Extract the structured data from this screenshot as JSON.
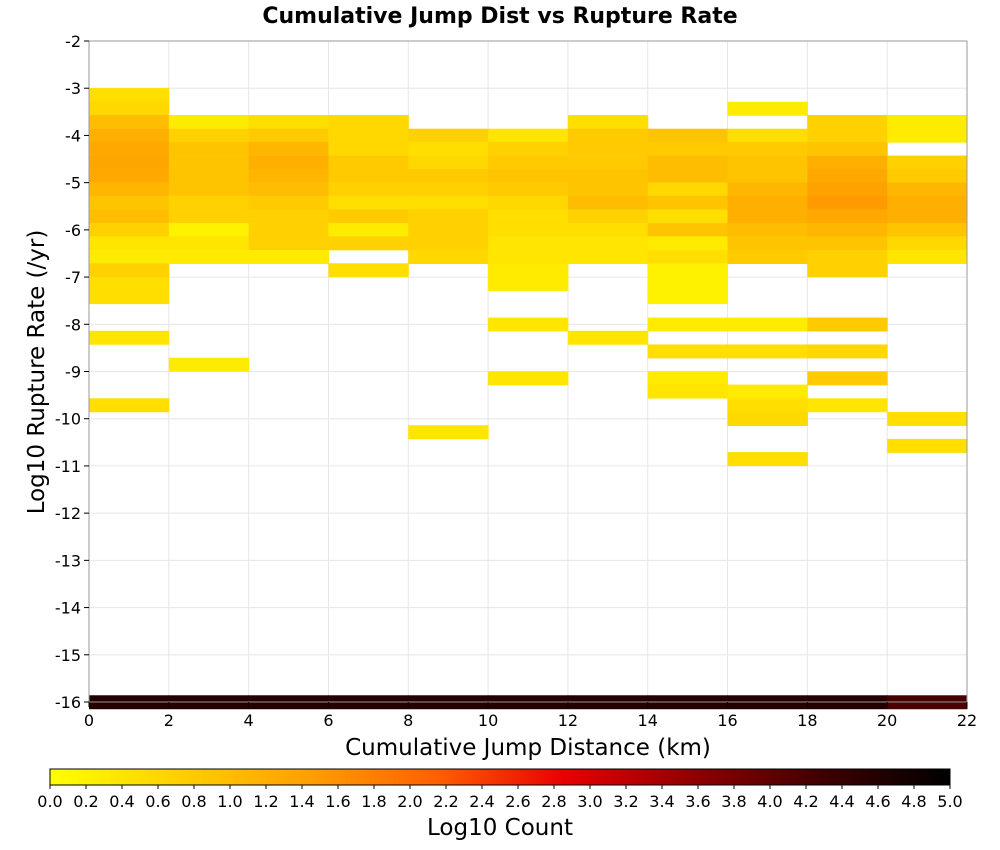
{
  "chart_data": {
    "type": "heatmap",
    "title": "Cumulative Jump Dist vs Rupture Rate",
    "xlabel": "Cumulative Jump Distance (km)",
    "ylabel": "Log10 Rupture Rate (/yr)",
    "xlim": [
      0,
      22
    ],
    "ylim": [
      -16,
      -2
    ],
    "x_ticks": [
      "0",
      "2",
      "4",
      "6",
      "8",
      "10",
      "12",
      "14",
      "16",
      "18",
      "20",
      "22"
    ],
    "y_ticks": [
      "-16",
      "-15",
      "-14",
      "-13",
      "-12",
      "-11",
      "-10",
      "-9",
      "-8",
      "-7",
      "-6",
      "-5",
      "-4",
      "-3",
      "-2"
    ],
    "x_bin_width": 2,
    "y_bin_height": 0.285,
    "grid": true,
    "colorbar": {
      "label": "Log10 Count",
      "range": [
        0,
        5
      ],
      "ticks": [
        "0.0",
        "0.2",
        "0.4",
        "0.6",
        "0.8",
        "1.0",
        "1.2",
        "1.4",
        "1.6",
        "1.8",
        "2.0",
        "2.2",
        "2.4",
        "2.6",
        "2.8",
        "3.0",
        "3.2",
        "3.4",
        "3.6",
        "3.8",
        "4.0",
        "4.2",
        "4.4",
        "4.6",
        "4.8",
        "5.0"
      ],
      "colors": [
        "#ffff00",
        "#ffd000",
        "#ffa000",
        "#ff6000",
        "#e80000",
        "#900000",
        "#400000",
        "#000000"
      ]
    },
    "cells": [
      [
        0,
        -3.14,
        0.5
      ],
      [
        0,
        -3.43,
        0.6
      ],
      [
        0,
        -3.71,
        1.0
      ],
      [
        0,
        -4.0,
        1.2
      ],
      [
        0,
        -4.28,
        1.3
      ],
      [
        0,
        -4.57,
        1.35
      ],
      [
        0,
        -4.85,
        1.3
      ],
      [
        0,
        -5.14,
        1.1
      ],
      [
        0,
        -5.42,
        0.9
      ],
      [
        0,
        -5.71,
        1.0
      ],
      [
        0,
        -6.0,
        0.7
      ],
      [
        0,
        -6.28,
        0.4
      ],
      [
        0,
        -6.57,
        0.3
      ],
      [
        0,
        -6.85,
        0.7
      ],
      [
        0,
        -7.14,
        0.5
      ],
      [
        0,
        -7.42,
        0.5
      ],
      [
        0,
        -8.28,
        0.4
      ],
      [
        0,
        -9.71,
        0.5
      ],
      [
        0,
        -16.0,
        4.6
      ],
      [
        2,
        -3.71,
        0.3
      ],
      [
        2,
        -4.0,
        0.7
      ],
      [
        2,
        -4.28,
        0.9
      ],
      [
        2,
        -4.57,
        0.9
      ],
      [
        2,
        -4.85,
        0.9
      ],
      [
        2,
        -5.14,
        0.9
      ],
      [
        2,
        -5.42,
        0.7
      ],
      [
        2,
        -5.71,
        0.7
      ],
      [
        2,
        -6.0,
        0.2
      ],
      [
        2,
        -6.28,
        0.4
      ],
      [
        2,
        -6.57,
        0.3
      ],
      [
        2,
        -8.85,
        0.3
      ],
      [
        2,
        -16.0,
        4.6
      ],
      [
        4,
        -3.71,
        0.5
      ],
      [
        4,
        -4.0,
        0.8
      ],
      [
        4,
        -4.28,
        1.1
      ],
      [
        4,
        -4.57,
        1.2
      ],
      [
        4,
        -4.85,
        1.1
      ],
      [
        4,
        -5.14,
        1.0
      ],
      [
        4,
        -5.42,
        0.8
      ],
      [
        4,
        -5.71,
        0.7
      ],
      [
        4,
        -6.0,
        0.7
      ],
      [
        4,
        -6.28,
        0.7
      ],
      [
        4,
        -6.57,
        0.3
      ],
      [
        4,
        -16.0,
        4.6
      ],
      [
        6,
        -3.71,
        0.6
      ],
      [
        6,
        -4.0,
        0.6
      ],
      [
        6,
        -4.28,
        0.6
      ],
      [
        6,
        -4.57,
        0.8
      ],
      [
        6,
        -4.85,
        0.8
      ],
      [
        6,
        -5.14,
        0.7
      ],
      [
        6,
        -5.42,
        0.5
      ],
      [
        6,
        -5.71,
        0.8
      ],
      [
        6,
        -6.0,
        0.3
      ],
      [
        6,
        -6.28,
        0.7
      ],
      [
        6,
        -6.85,
        0.5
      ],
      [
        6,
        -16.0,
        4.6
      ],
      [
        8,
        -4.0,
        0.7
      ],
      [
        8,
        -4.28,
        0.5
      ],
      [
        8,
        -4.57,
        0.6
      ],
      [
        8,
        -4.85,
        0.8
      ],
      [
        8,
        -5.14,
        0.7
      ],
      [
        8,
        -5.42,
        0.5
      ],
      [
        8,
        -5.71,
        0.7
      ],
      [
        8,
        -6.0,
        0.7
      ],
      [
        8,
        -6.28,
        0.7
      ],
      [
        8,
        -6.57,
        0.6
      ],
      [
        8,
        -10.28,
        0.4
      ],
      [
        8,
        -16.0,
        4.6
      ],
      [
        10,
        -4.0,
        0.4
      ],
      [
        10,
        -4.28,
        0.7
      ],
      [
        10,
        -4.57,
        0.8
      ],
      [
        10,
        -4.85,
        0.9
      ],
      [
        10,
        -5.14,
        0.8
      ],
      [
        10,
        -5.42,
        0.6
      ],
      [
        10,
        -5.71,
        0.5
      ],
      [
        10,
        -6.0,
        0.5
      ],
      [
        10,
        -6.28,
        0.4
      ],
      [
        10,
        -6.57,
        0.4
      ],
      [
        10,
        -6.85,
        0.3
      ],
      [
        10,
        -7.14,
        0.3
      ],
      [
        10,
        -8.0,
        0.4
      ],
      [
        10,
        -9.14,
        0.4
      ],
      [
        10,
        -16.0,
        4.6
      ],
      [
        12,
        -3.71,
        0.5
      ],
      [
        12,
        -4.0,
        0.8
      ],
      [
        12,
        -4.28,
        0.8
      ],
      [
        12,
        -4.57,
        0.8
      ],
      [
        12,
        -4.85,
        0.9
      ],
      [
        12,
        -5.14,
        0.9
      ],
      [
        12,
        -5.42,
        1.0
      ],
      [
        12,
        -5.71,
        0.7
      ],
      [
        12,
        -6.0,
        0.5
      ],
      [
        12,
        -6.28,
        0.4
      ],
      [
        12,
        -6.57,
        0.4
      ],
      [
        12,
        -8.28,
        0.4
      ],
      [
        12,
        -16.0,
        4.6
      ],
      [
        14,
        -4.0,
        0.9
      ],
      [
        14,
        -4.28,
        0.8
      ],
      [
        14,
        -4.57,
        1.0
      ],
      [
        14,
        -4.85,
        1.0
      ],
      [
        14,
        -5.14,
        0.6
      ],
      [
        14,
        -5.42,
        0.9
      ],
      [
        14,
        -5.71,
        0.5
      ],
      [
        14,
        -6.0,
        0.9
      ],
      [
        14,
        -6.28,
        0.3
      ],
      [
        14,
        -6.57,
        0.5
      ],
      [
        14,
        -6.85,
        0.2
      ],
      [
        14,
        -7.14,
        0.2
      ],
      [
        14,
        -7.42,
        0.2
      ],
      [
        14,
        -8.0,
        0.3
      ],
      [
        14,
        -8.57,
        0.5
      ],
      [
        14,
        -9.14,
        0.3
      ],
      [
        14,
        -9.42,
        0.4
      ],
      [
        14,
        -16.0,
        4.6
      ],
      [
        16,
        -3.43,
        0.3
      ],
      [
        16,
        -4.0,
        0.5
      ],
      [
        16,
        -4.28,
        0.8
      ],
      [
        16,
        -4.57,
        0.9
      ],
      [
        16,
        -4.85,
        0.9
      ],
      [
        16,
        -5.14,
        1.1
      ],
      [
        16,
        -5.42,
        1.2
      ],
      [
        16,
        -5.71,
        1.2
      ],
      [
        16,
        -6.0,
        1.0
      ],
      [
        16,
        -6.28,
        0.9
      ],
      [
        16,
        -6.57,
        0.8
      ],
      [
        16,
        -8.0,
        0.3
      ],
      [
        16,
        -8.57,
        0.5
      ],
      [
        16,
        -9.42,
        0.3
      ],
      [
        16,
        -9.71,
        0.5
      ],
      [
        16,
        -10.0,
        0.6
      ],
      [
        16,
        -10.85,
        0.5
      ],
      [
        16,
        -16.0,
        4.6
      ],
      [
        18,
        -3.71,
        0.7
      ],
      [
        18,
        -4.0,
        0.7
      ],
      [
        18,
        -4.28,
        0.9
      ],
      [
        18,
        -4.57,
        1.2
      ],
      [
        18,
        -4.85,
        1.3
      ],
      [
        18,
        -5.14,
        1.4
      ],
      [
        18,
        -5.42,
        1.5
      ],
      [
        18,
        -5.71,
        1.3
      ],
      [
        18,
        -6.0,
        1.1
      ],
      [
        18,
        -6.28,
        0.9
      ],
      [
        18,
        -6.57,
        0.7
      ],
      [
        18,
        -6.85,
        0.7
      ],
      [
        18,
        -8.0,
        0.8
      ],
      [
        18,
        -8.57,
        0.6
      ],
      [
        18,
        -9.14,
        0.8
      ],
      [
        18,
        -9.71,
        0.4
      ],
      [
        18,
        -16.0,
        4.6
      ],
      [
        20,
        -3.71,
        0.3
      ],
      [
        20,
        -4.0,
        0.3
      ],
      [
        20,
        -4.57,
        0.7
      ],
      [
        20,
        -4.85,
        0.8
      ],
      [
        20,
        -5.14,
        1.1
      ],
      [
        20,
        -5.42,
        1.2
      ],
      [
        20,
        -5.71,
        1.2
      ],
      [
        20,
        -6.0,
        0.9
      ],
      [
        20,
        -6.28,
        0.6
      ],
      [
        20,
        -6.57,
        0.4
      ],
      [
        20,
        -10.0,
        0.5
      ],
      [
        20,
        -10.57,
        0.5
      ],
      [
        20,
        -16.0,
        4.2
      ]
    ]
  }
}
